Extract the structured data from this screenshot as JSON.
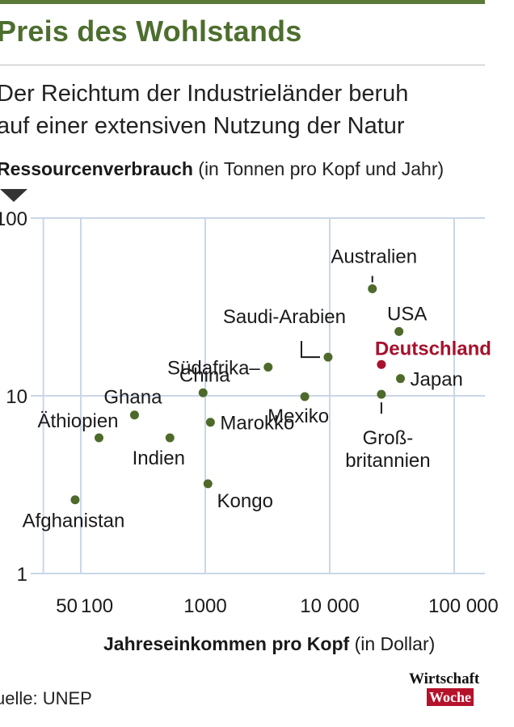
{
  "header": {
    "title": "Preis des Wohlstands",
    "subtitle_line1": "Der Reichtum der Industrieländer beruh",
    "subtitle_line2": "auf einer extensiven Nutzung der Natur"
  },
  "footer": {
    "source": "uelle: UNEP",
    "logo_line1": "Wirtschaft",
    "logo_line2": "Woche"
  },
  "chart_data": {
    "type": "scatter",
    "xscale": "log",
    "yscale": "log",
    "ylabel_bold": "Ressourcenverbrauch",
    "ylabel_rest": "(in Tonnen pro Kopf und Jahr)",
    "xlabel_bold": "Jahreseinkommen pro Kopf",
    "xlabel_rest": "(in Dollar)",
    "xlim": [
      50,
      100000
    ],
    "ylim": [
      1,
      100
    ],
    "x_ticks": [
      {
        "value": 50,
        "label": "50"
      },
      {
        "value": 100,
        "label": "100"
      },
      {
        "value": 1000,
        "label": "1000"
      },
      {
        "value": 10000,
        "label": "10 000"
      },
      {
        "value": 100000,
        "label": "100 000"
      }
    ],
    "y_ticks": [
      {
        "value": 100,
        "label": "100"
      },
      {
        "value": 10,
        "label": "10"
      },
      {
        "value": 1,
        "label": "1"
      }
    ],
    "grid": true,
    "colors": {
      "default": "#4d6a2a",
      "highlight": "#a8112c",
      "grid": "#c9d7e7"
    },
    "points": [
      {
        "name": "Afghanistan",
        "x": 90,
        "y": 2.6
      },
      {
        "name": "Äthiopien",
        "x": 140,
        "y": 5.8
      },
      {
        "name": "Ghana",
        "x": 270,
        "y": 7.8
      },
      {
        "name": "Indien",
        "x": 520,
        "y": 5.8
      },
      {
        "name": "China",
        "x": 960,
        "y": 10.4
      },
      {
        "name": "Marokko",
        "x": 1100,
        "y": 7.1
      },
      {
        "name": "Kongo",
        "x": 1050,
        "y": 3.2
      },
      {
        "name": "Südafrika–",
        "x": 3200,
        "y": 14.5
      },
      {
        "name": "Mexiko",
        "x": 6300,
        "y": 9.9
      },
      {
        "name": "Saudi-Arabien",
        "x": 9700,
        "y": 16.5
      },
      {
        "name": "Australien",
        "x": 22000,
        "y": 40
      },
      {
        "name": "USA",
        "x": 36000,
        "y": 23
      },
      {
        "name": "Deutschland",
        "x": 26000,
        "y": 15,
        "highlight": true
      },
      {
        "name": "Japan",
        "x": 37000,
        "y": 12.5
      },
      {
        "name": "Groß-|britannien",
        "x": 26000,
        "y": 10.2
      }
    ]
  }
}
